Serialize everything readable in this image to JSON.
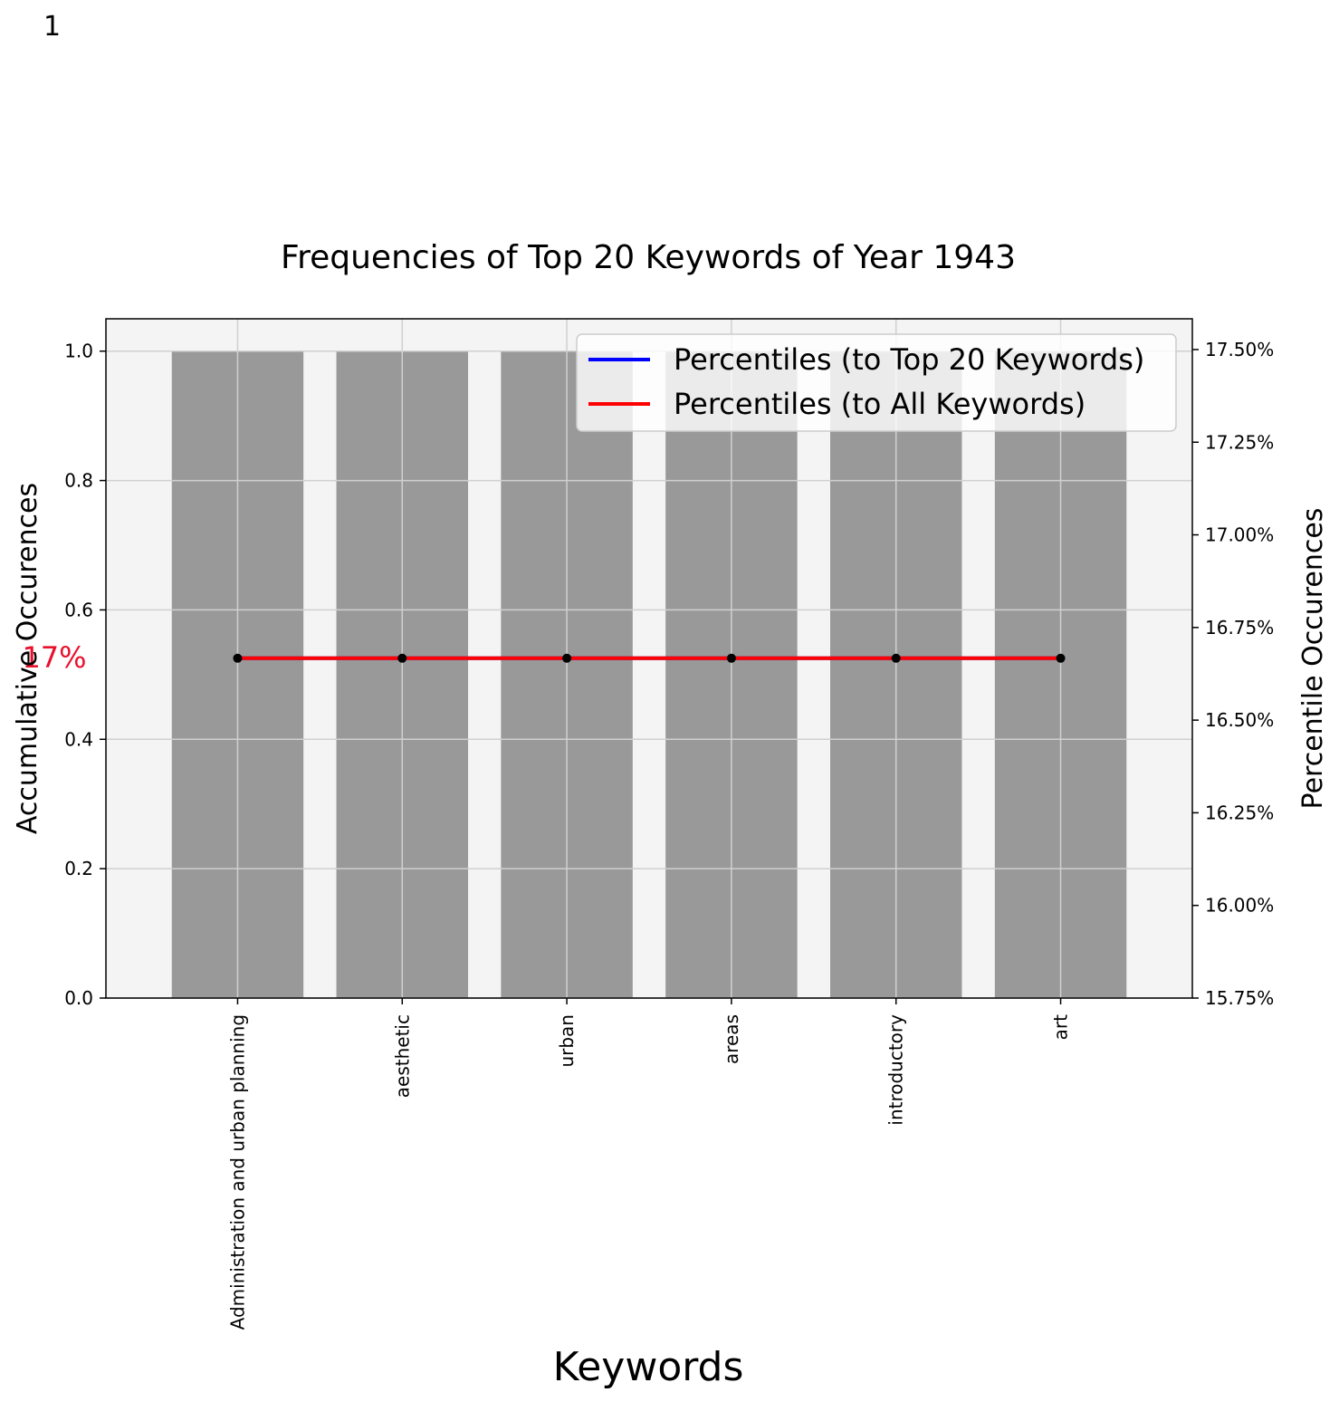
{
  "page_number": "1",
  "colors": {
    "bar": "#999999",
    "plot_background": "#f4f4f4",
    "grid": "#d0d0d0",
    "line_top20": "#0000ff",
    "line_all": "#ff0000",
    "marker": "#000000",
    "annotation": "#e8112d"
  },
  "chart_data": {
    "type": "bar",
    "title": "Frequencies of Top 20 Keywords of Year 1943",
    "xlabel": "Keywords",
    "ylabel": "Accumulative Occurences",
    "ylabel_right": "Percentile Occurences",
    "categories": [
      "Administration and urban planning",
      "aesthetic",
      "urban",
      "areas",
      "introductory",
      "art"
    ],
    "values": [
      1,
      1,
      1,
      1,
      1,
      1
    ],
    "ylim": [
      0,
      1.05
    ],
    "yticks": [
      "0.0",
      "0.2",
      "0.4",
      "0.6",
      "0.8",
      "1.0"
    ],
    "ylim_right": [
      15.75,
      17.583
    ],
    "yticks_right": [
      "15.75%",
      "16.00%",
      "16.25%",
      "16.50%",
      "16.75%",
      "17.00%",
      "17.25%",
      "17.50%"
    ],
    "series": [
      {
        "name": "Percentiles (to Top 20 Keywords)",
        "axis": "right",
        "values": [
          16.667,
          16.667,
          16.667,
          16.667,
          16.667,
          16.667
        ]
      },
      {
        "name": "Percentiles (to All Keywords)",
        "axis": "right",
        "values": [
          16.667,
          16.667,
          16.667,
          16.667,
          16.667,
          16.667
        ]
      }
    ],
    "annotation": "17%",
    "grid": true,
    "legend_position": "top-right"
  }
}
